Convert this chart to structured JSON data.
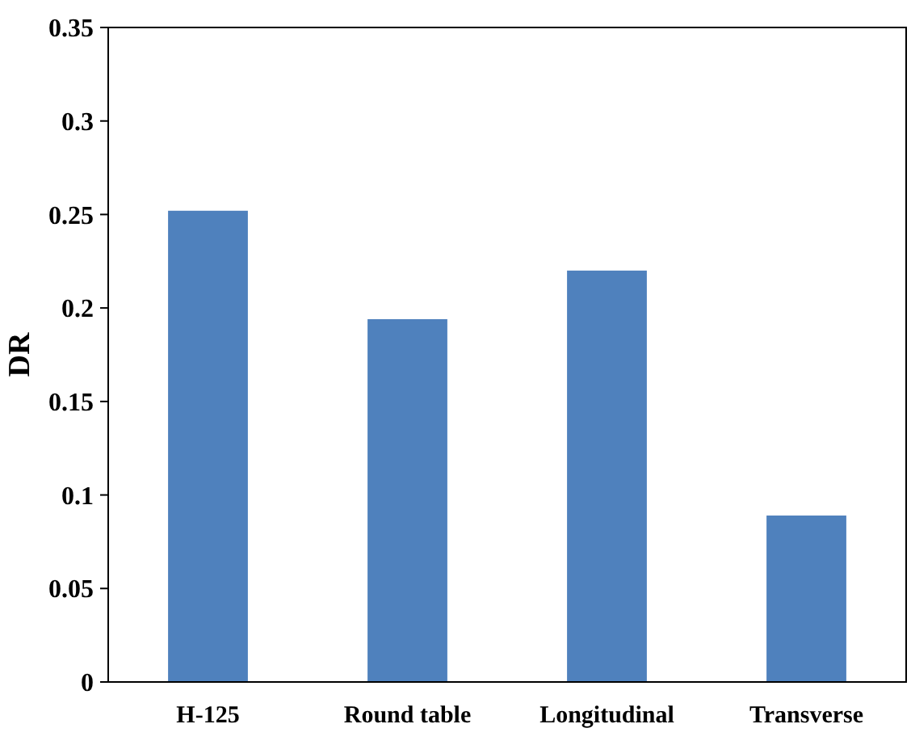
{
  "chart_data": {
    "type": "bar",
    "ylabel": "DR",
    "categories": [
      "H-125",
      "Round table",
      "Longitudinal",
      "Transverse"
    ],
    "values": [
      0.252,
      0.194,
      0.22,
      0.089
    ],
    "color": "#4f81bd",
    "ylim": [
      0,
      0.35
    ],
    "yticks": [
      {
        "value": 0,
        "label": "0"
      },
      {
        "value": 0.05,
        "label": "0.05"
      },
      {
        "value": 0.1,
        "label": "0.1"
      },
      {
        "value": 0.15,
        "label": "0.15"
      },
      {
        "value": 0.2,
        "label": "0.2"
      },
      {
        "value": 0.25,
        "label": "0.25"
      },
      {
        "value": 0.3,
        "label": "0.3"
      },
      {
        "value": 0.35,
        "label": "0.35"
      }
    ],
    "grid": false
  }
}
